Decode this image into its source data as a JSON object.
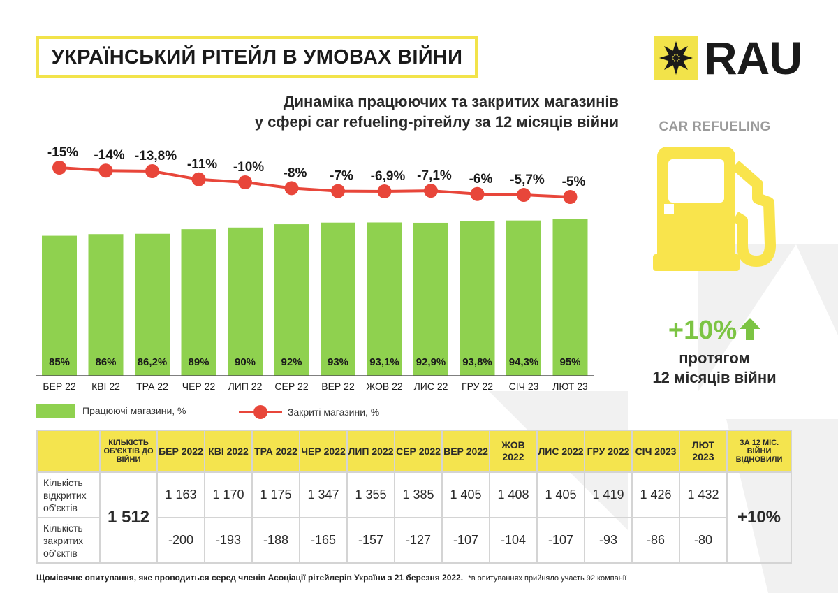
{
  "header": {
    "title": "УКРАЇНСЬКИЙ РІТЕЙЛ В УМОВАХ ВІЙНИ"
  },
  "logo": {
    "text": "RAU"
  },
  "subtitle": {
    "line1": "Динаміка працюючих та закритих магазинів",
    "line2": "у сфері car refueling-рітейлу за 12 місяців війни"
  },
  "sidebar": {
    "category": "CAR REFUELING",
    "icon": "fuel-pump-icon",
    "growth_value": "+10%",
    "growth_caption_line1": "протягом",
    "growth_caption_line2": "12 місяців війни"
  },
  "colors": {
    "bar": "#8fd14f",
    "line": "#e8463a",
    "accent": "#f4e44e",
    "growth": "#7cc443"
  },
  "chart_data": {
    "type": "bar",
    "categories": [
      "БЕР 22",
      "КВІ 22",
      "ТРА 22",
      "ЧЕР 22",
      "ЛИП 22",
      "СЕР 22",
      "ВЕР 22",
      "ЖОВ 22",
      "ЛИС 22",
      "ГРУ 22",
      "СІЧ 23",
      "ЛЮТ 23"
    ],
    "series": [
      {
        "name": "Працюючі магазини, %",
        "type": "bar",
        "values": [
          85,
          86,
          86.2,
          89,
          90,
          92,
          93,
          93.1,
          92.9,
          93.8,
          94.3,
          95
        ],
        "labels": [
          "85%",
          "86%",
          "86,2%",
          "89%",
          "90%",
          "92%",
          "93%",
          "93,1%",
          "92,9%",
          "93,8%",
          "94,3%",
          "95%"
        ]
      },
      {
        "name": "Закриті магазини, %",
        "type": "line",
        "values": [
          -15,
          -14,
          -13.8,
          -11,
          -10,
          -8,
          -7,
          -6.9,
          -7.1,
          -6,
          -5.7,
          -5
        ],
        "labels": [
          "-15%",
          "-14%",
          "-13,8%",
          "-11%",
          "-10%",
          "-8%",
          "-7%",
          "-6,9%",
          "-7,1%",
          "-6%",
          "-5,7%",
          "-5%"
        ]
      }
    ],
    "legend_position": "bottom"
  },
  "table": {
    "headers": [
      "",
      "КІЛЬКІСТЬ ОБ'ЄКТІВ ДО ВІЙНИ",
      "БЕР 2022",
      "КВІ 2022",
      "ТРА 2022",
      "ЧЕР 2022",
      "ЛИП 2022",
      "СЕР 2022",
      "ВЕР 2022",
      "ЖОВ 2022",
      "ЛИС 2022",
      "ГРУ 2022",
      "СІЧ 2023",
      "ЛЮТ 2023",
      "ЗА 12 МІС. ВІЙНИ ВІДНОВИЛИ"
    ],
    "base_count": "1 512",
    "total": "+10%",
    "rows": [
      {
        "label": "Кількість відкритих об'єктів",
        "values": [
          "1 163",
          "1 170",
          "1 175",
          "1 347",
          "1 355",
          "1 385",
          "1 405",
          "1 408",
          "1 405",
          "1 419",
          "1 426",
          "1 432"
        ]
      },
      {
        "label": "Кількість закритих об'єктів",
        "values": [
          "-200",
          "-193",
          "-188",
          "-165",
          "-157",
          "-127",
          "-107",
          "-104",
          "-107",
          "-93",
          "-86",
          "-80"
        ]
      }
    ]
  },
  "footnote": {
    "main": "Щомісячне опитування, яке проводиться серед членів Асоціації рітейлерів України з 21 березня 2022.",
    "note": "*в опитуваннях прийняло участь 92 компанії"
  }
}
